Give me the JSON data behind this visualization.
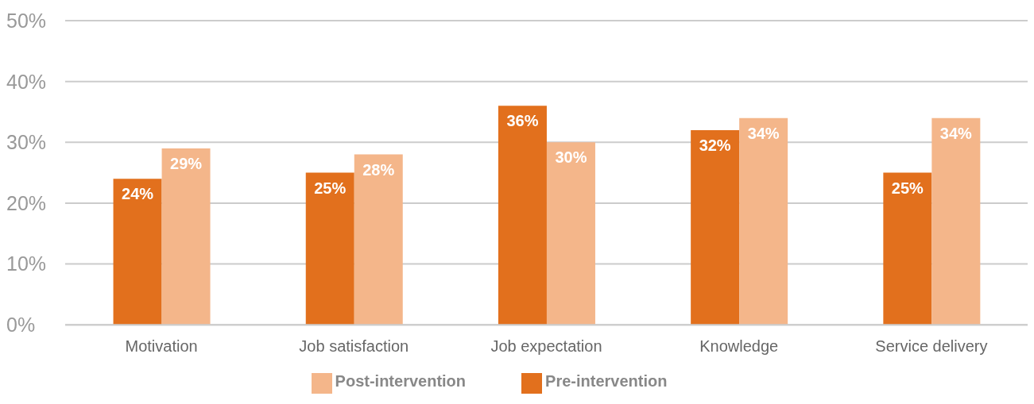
{
  "chart_data": {
    "type": "bar",
    "categories": [
      "Motivation",
      "Job satisfaction",
      "Job expectation",
      "Knowledge",
      "Service delivery"
    ],
    "series": [
      {
        "name": "Pre-intervention",
        "color": "#e2701d",
        "values": [
          24,
          25,
          36,
          32,
          25
        ],
        "value_labels": [
          "24%",
          "25%",
          "36%",
          "32%",
          "25%"
        ]
      },
      {
        "name": "Post-intervention",
        "color": "#f4b68a",
        "values": [
          29,
          28,
          30,
          34,
          34
        ],
        "value_labels": [
          "29%",
          "28%",
          "30%",
          "34%",
          "34%"
        ]
      }
    ],
    "ylim": [
      0,
      50
    ],
    "yticks": [
      {
        "value": 0,
        "label": "0%"
      },
      {
        "value": 10,
        "label": "10%"
      },
      {
        "value": 20,
        "label": "20%"
      },
      {
        "value": 30,
        "label": "30%"
      },
      {
        "value": 40,
        "label": "40%"
      },
      {
        "value": 50,
        "label": "50%"
      }
    ],
    "grid": "y",
    "legend": "bottom"
  }
}
